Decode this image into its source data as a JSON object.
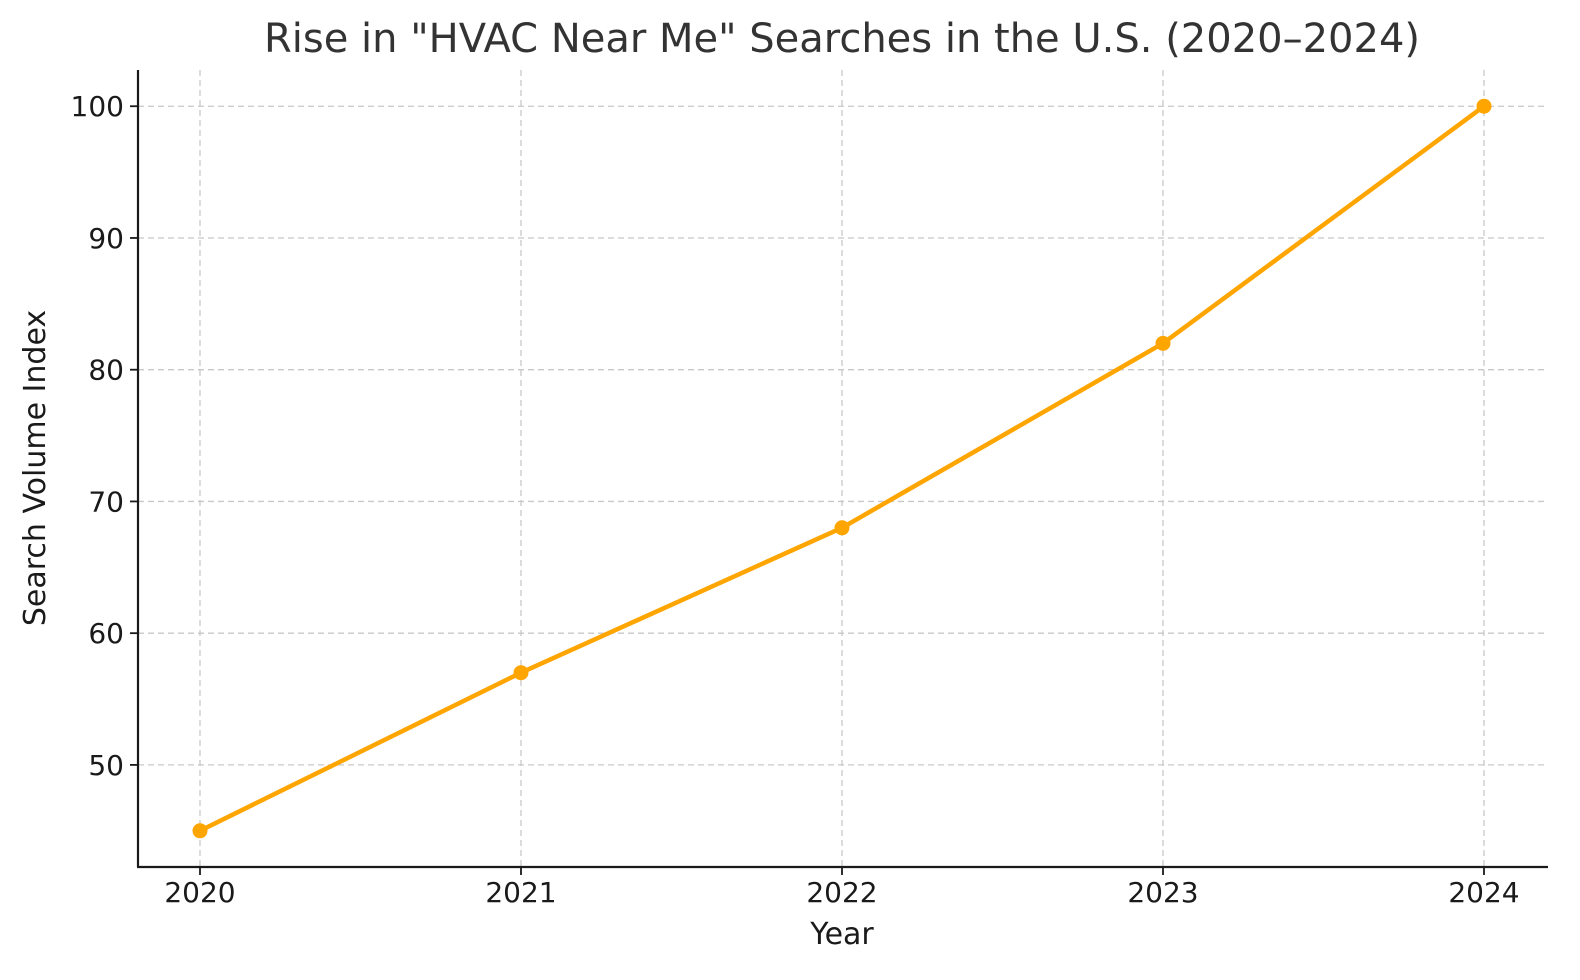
{
  "chart_data": {
    "type": "line",
    "title": "Rise in \"HVAC Near Me\" Searches in the U.S. (2020–2024)",
    "xlabel": "Year",
    "ylabel": "Search Volume Index",
    "x": [
      "2020",
      "2021",
      "2022",
      "2023",
      "2024"
    ],
    "series": [
      {
        "values": [
          45,
          57,
          68,
          82,
          100
        ],
        "color": "#FFA500"
      }
    ],
    "yticks": [
      50,
      60,
      70,
      80,
      90,
      100
    ],
    "ylim": [
      42.25,
      102.75
    ],
    "grid": true,
    "legend": "none"
  }
}
